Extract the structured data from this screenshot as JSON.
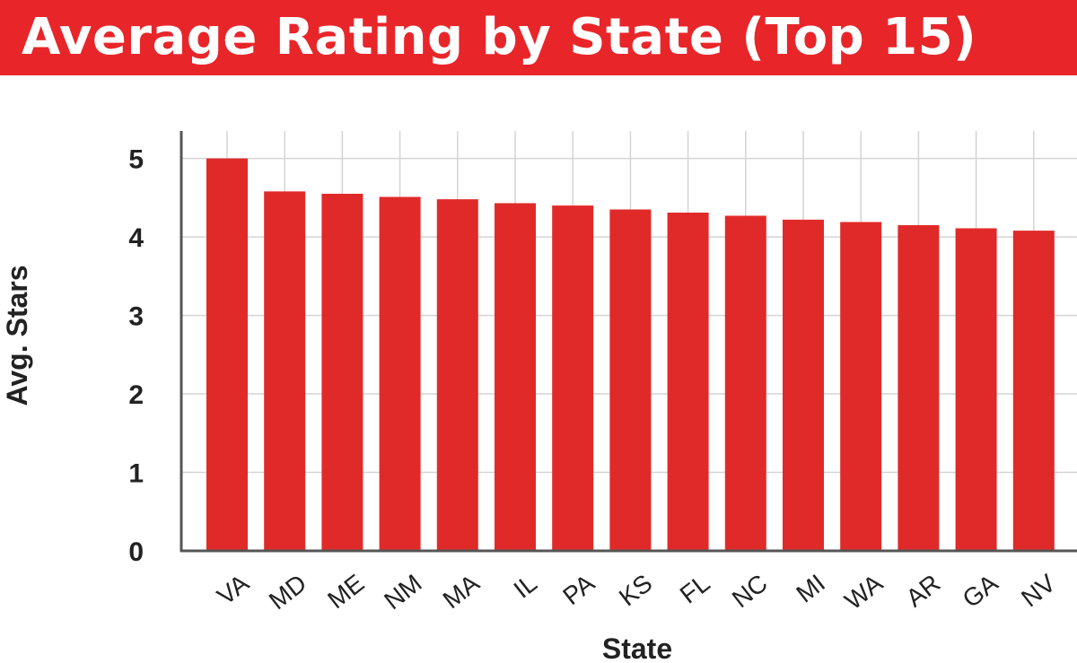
{
  "header": {
    "title": "Average Rating by State (Top 15)"
  },
  "colors": {
    "title_background": "#e8262a",
    "title_text": "#ffffff",
    "bar": "#e02a29",
    "grid": "#d4d4d4",
    "axis": "#555555"
  },
  "chart_data": {
    "type": "bar",
    "title": "Average Rating by State (Top 15)",
    "xlabel": "State",
    "ylabel": "Avg. Stars",
    "categories": [
      "VA",
      "MD",
      "ME",
      "NM",
      "MA",
      "IL",
      "PA",
      "KS",
      "FL",
      "NC",
      "MI",
      "WA",
      "AR",
      "GA",
      "NV"
    ],
    "values": [
      5.0,
      4.58,
      4.55,
      4.51,
      4.48,
      4.43,
      4.4,
      4.35,
      4.31,
      4.27,
      4.22,
      4.19,
      4.15,
      4.11,
      4.08
    ],
    "yticks": [
      0,
      1,
      2,
      3,
      4,
      5
    ],
    "ylim": [
      0,
      5.35
    ],
    "grid": true,
    "legend": "none"
  }
}
